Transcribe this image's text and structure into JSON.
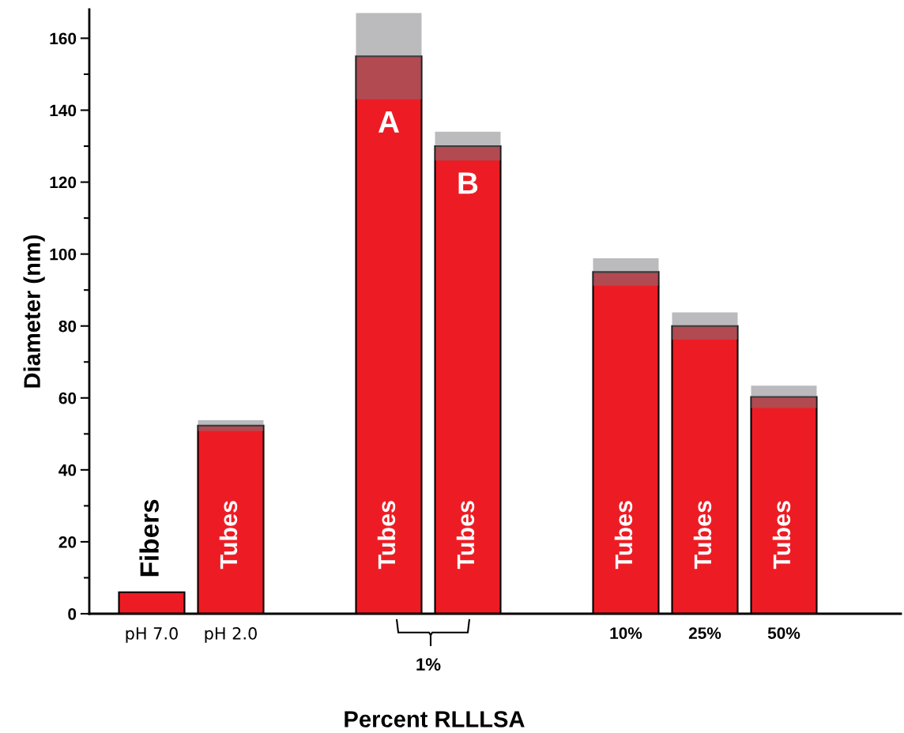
{
  "chart_data": {
    "type": "bar",
    "xlabel": "Percent RLLLSA",
    "ylabel": "Diameter (nm)",
    "categories": [
      "pH 7.0",
      "pH 2.0",
      null,
      null,
      null,
      null,
      "10%",
      "25%",
      "50%"
    ],
    "values": [
      6,
      52.3,
      null,
      155,
      130,
      null,
      95,
      80,
      60.3
    ],
    "errors": [
      null,
      1.5,
      null,
      12,
      4,
      null,
      3.8,
      3.8,
      3.1
    ],
    "color": "#ed1c24",
    "ylim": [
      0,
      168
    ],
    "yticks": [
      0,
      20,
      40,
      60,
      80,
      100,
      120,
      140,
      160
    ],
    "annotations": [
      "Fibers",
      "Tubes",
      "Tubes",
      "Tubes",
      "Tubes",
      "Tubes",
      "Tubes",
      "A",
      "B",
      "1%"
    ],
    "grid": false
  }
}
